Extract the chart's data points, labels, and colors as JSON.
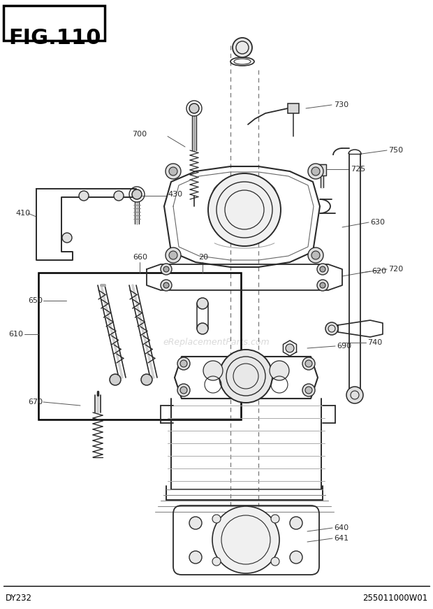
{
  "title": "FIG.110",
  "bottom_left": "DY232",
  "bottom_right": "255011000W01",
  "bg_color": "#ffffff",
  "line_color": "#2a2a2a",
  "text_color": "#2a2a2a",
  "watermark": "eReplacementParts.com",
  "fig_width": 6.2,
  "fig_height": 8.71,
  "dpi": 100
}
